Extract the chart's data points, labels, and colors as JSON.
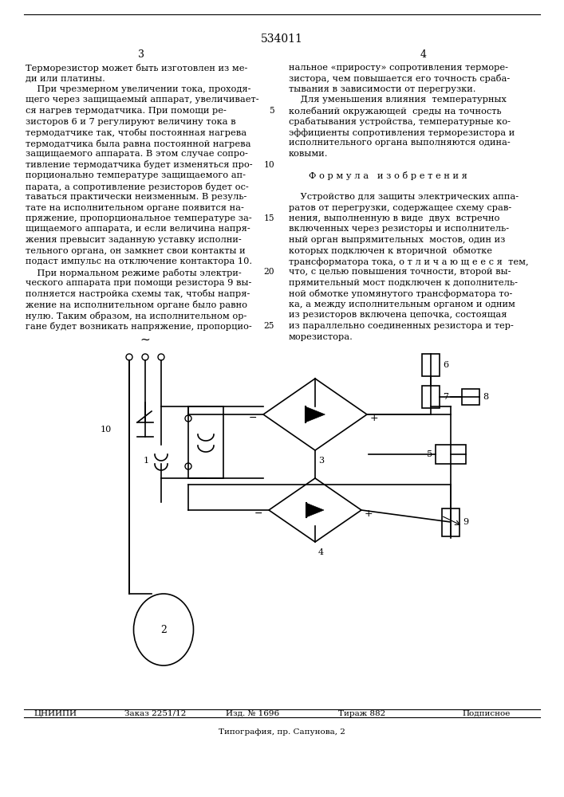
{
  "patent_number": "534011",
  "page_left": "3",
  "page_right": "4",
  "bg_color": "#ffffff",
  "text_color": "#000000",
  "font_size": 8.2,
  "title_font_size": 10,
  "footer_line1_parts": [
    "ЦНИИПИ",
    "Заказ 2251/12",
    "Изд. № 1696",
    "Тираж 882",
    "Подписное"
  ],
  "footer_line1_x": [
    0.06,
    0.22,
    0.4,
    0.6,
    0.82
  ],
  "footer_line2": "Типография, пр. Сапунова, 2",
  "col1_lines": [
    "Терморезистор может быть изготовлен из ме-",
    "ди или платины.",
    "    При чрезмерном увеличении тока, проходя-",
    "щего через защищаемый аппарат, увеличивает-",
    "ся нагрев термодатчика. При помощи ре-",
    "зисторов 6 и 7 регулируют величину тока в",
    "термодатчике так, чтобы постоянная нагрева",
    "термодатчика была равна постоянной нагрева",
    "защищаемого аппарата. В этом случае сопро-",
    "тивление термодатчика будет изменяться про-",
    "порционально температуре защищаемого ап-",
    "парата, а сопротивление резисторов будет ос-",
    "таваться практически неизменным. В резуль-",
    "тате на исполнительном органе появится на-",
    "пряжение, пропорциональное температуре за-",
    "щищаемого аппарата, и если величина напря-",
    "жения превысит заданную уставку исполни-",
    "тельного органа, он замкнет свои контакты и",
    "подаст импульс на отключение контактора 10.",
    "    При нормальном режиме работы электри-",
    "ческого аппарата при помощи резистора 9 вы-",
    "полняется настройка схемы так, чтобы напря-",
    "жение на исполнительном органе было равно",
    "нулю. Таким образом, на исполнительном ор-",
    "гане будет возникать напряжение, пропорцио-"
  ],
  "col2_lines": [
    "нальное «приросту» сопротивления терморе-",
    "зистора, чем повышается его точность сраба-",
    "тывания в зависимости от перегрузки.",
    "    Для уменьшения влияния  температурных",
    "колебаний окружающей  среды на точность",
    "срабатывания устройства, температурные ко-",
    "эффициенты сопротивления терморезистора и",
    "исполнительного органа выполняются одина-",
    "ковыми.",
    "",
    "Ф о р м у л а   и з о б р е т е н и я",
    "",
    "    Устройство для защиты электрических аппа-",
    "ратов от перегрузки, содержащее схему срав-",
    "нения, выполненную в виде  двух  встречно",
    "включенных через резисторы и исполнитель-",
    "ный орган выпрямительных  мостов, один из",
    "которых подключен к вторичной  обмотке",
    "трансформатора тока, о т л и ч а ю щ е е с я  тем,",
    "что, с целью повышения точности, второй вы-",
    "прямительный мост подключен к дополнитель-",
    "ной обмотке упомянутого трансформатора то-",
    "ка, а между исполнительным органом и одним",
    "из резисторов включена цепочка, состоящая",
    "из параллельно соединенных резистора и тер-",
    "морезистора."
  ],
  "line_numbers": [
    "5",
    "10",
    "15",
    "20",
    "25"
  ],
  "line_number_rows": [
    4,
    9,
    14,
    19,
    24
  ]
}
